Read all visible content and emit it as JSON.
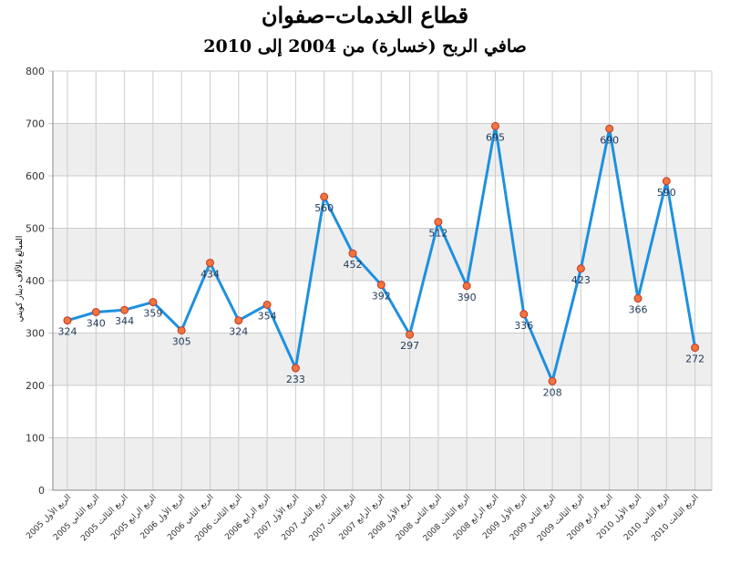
{
  "title": "قطاع الخدمات–صفوان",
  "subtitle": "صافي الربح (خسارة) من 2004 إلى 2010",
  "colors": {
    "line": "#1e90e0",
    "marker_fill": "#f0743c",
    "marker_stroke": "#c0392b",
    "band": "#eeeeee",
    "grid": "#cccccc",
    "label": "#1f3a5a"
  },
  "chart_data": {
    "type": "line",
    "title": "قطاع الخدمات–صفوان",
    "subtitle": "صافي الربح (خسارة) من 2004 إلى 2010",
    "ylabel": "المبالغ بالآلاف دينار كويتي",
    "xlabel": "",
    "ylim": [
      0,
      800
    ],
    "yticks": [
      0,
      100,
      200,
      300,
      400,
      500,
      600,
      700,
      800
    ],
    "grid": true,
    "legend": "none",
    "categories": [
      "الربع الأول 2005",
      "الربع الثاني 2005",
      "الربع الثالث 2005",
      "الربع الرابع 2005",
      "الربع الأول 2006",
      "الربع الثاني 2006",
      "الربع الثالث 2006",
      "الربع الرابع 2006",
      "الربع الأول 2007",
      "الربع الثاني 2007",
      "الربع الثالث 2007",
      "الربع الرابع 2007",
      "الربع الأول 2008",
      "الربع الثاني 2008",
      "الربع الثالث 2008",
      "الربع الرابع 2008",
      "الربع الأول 2009",
      "الربع الثاني 2009",
      "الربع الثالث 2009",
      "الربع الرابع 2009",
      "الربع الأول 2010",
      "الربع الثاني 2010",
      "الربع الثالث 2010"
    ],
    "values": [
      324,
      340,
      344,
      359,
      305,
      434,
      324,
      354,
      233,
      560,
      452,
      392,
      297,
      512,
      390,
      695,
      336,
      208,
      423,
      690,
      366,
      590,
      272
    ]
  }
}
